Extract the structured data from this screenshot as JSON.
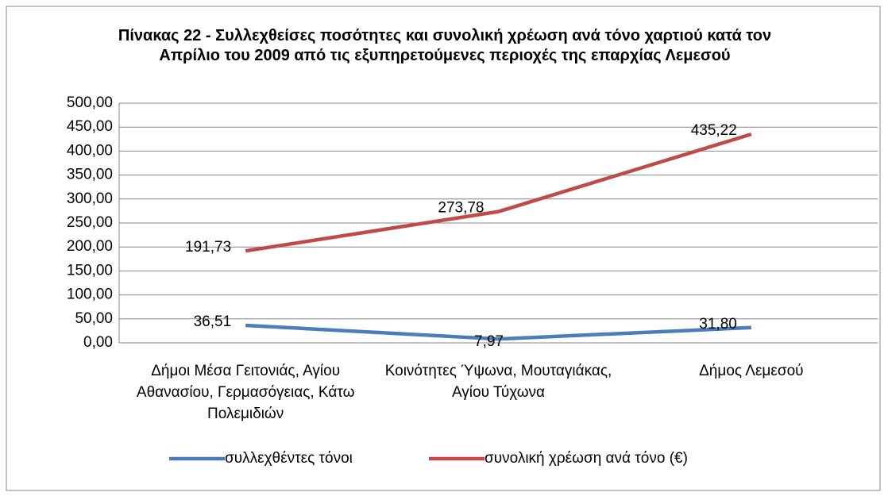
{
  "chart_data": {
    "type": "line",
    "title": "Πίνακας 22 - Συλλεχθείσες ποσότητες και συνολική χρέωση ανά τόνο χαρτιού κατά τον Απρίλιο του 2009 από τις εξυπηρετούμενες περιοχές της επαρχίας Λεμεσού",
    "categories": [
      "Δήμοι Μέσα Γειτονιάς, Αγίου Αθανασίου, Γερμασόγειας, Κάτω Πολεμιδιών",
      "Κοινότητες Ύψωνα, Μουταγιάκας, Αγίου Τύχωνα",
      "Δήμος Λεμεσού"
    ],
    "series": [
      {
        "name": "συλλεχθέντες τόνοι",
        "color": "#4a7ebb",
        "values": [
          36.51,
          7.97,
          31.8
        ],
        "value_labels": [
          "36,51",
          "7,97",
          "31,80"
        ]
      },
      {
        "name": "συνολική χρέωση ανά τόνο (€)",
        "color": "#be4b48",
        "values": [
          191.73,
          273.78,
          435.22
        ],
        "value_labels": [
          "191,73",
          "273,78",
          "435,22"
        ]
      }
    ],
    "ylim": [
      0,
      500
    ],
    "yticks": [
      {
        "value": 0,
        "label": "0,00"
      },
      {
        "value": 50,
        "label": "50,00"
      },
      {
        "value": 100,
        "label": "100,00"
      },
      {
        "value": 150,
        "label": "150,00"
      },
      {
        "value": 200,
        "label": "200,00"
      },
      {
        "value": 250,
        "label": "250,00"
      },
      {
        "value": 300,
        "label": "300,00"
      },
      {
        "value": 350,
        "label": "350,00"
      },
      {
        "value": 400,
        "label": "400,00"
      },
      {
        "value": 450,
        "label": "450,00"
      },
      {
        "value": 500,
        "label": "500,00"
      }
    ],
    "grid": true,
    "legend": "bottom"
  }
}
